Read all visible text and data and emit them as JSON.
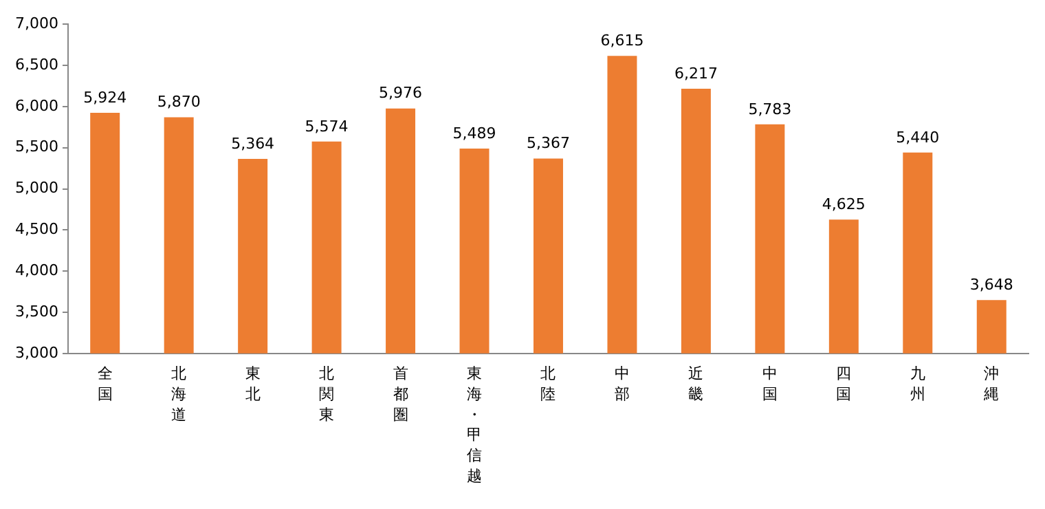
{
  "chart_data": {
    "type": "bar",
    "categories": [
      "全国",
      "北海道",
      "東北",
      "北関東",
      "首都圏",
      "東海・甲信越",
      "北陸",
      "中部",
      "近畿",
      "中国",
      "四国",
      "九州",
      "沖縄"
    ],
    "values": [
      5924,
      5870,
      5364,
      5574,
      5976,
      5489,
      5367,
      6615,
      6217,
      5783,
      4625,
      5440,
      3648
    ],
    "value_labels": [
      "5,924",
      "5,870",
      "5,364",
      "5,574",
      "5,976",
      "5,489",
      "5,367",
      "6,615",
      "6,217",
      "5,783",
      "4,625",
      "5,440",
      "3,648"
    ],
    "color": "#ed7d31",
    "ylim": [
      3000,
      7000
    ],
    "yticks": [
      {
        "value": 3000,
        "label": "3,000"
      },
      {
        "value": 3500,
        "label": "3,500"
      },
      {
        "value": 4000,
        "label": "4,000"
      },
      {
        "value": 4500,
        "label": "4,500"
      },
      {
        "value": 5000,
        "label": "5,000"
      },
      {
        "value": 5500,
        "label": "5,500"
      },
      {
        "value": 6000,
        "label": "6,000"
      },
      {
        "value": 6500,
        "label": "6,500"
      },
      {
        "value": 7000,
        "label": "7,000"
      }
    ],
    "grid": false
  }
}
